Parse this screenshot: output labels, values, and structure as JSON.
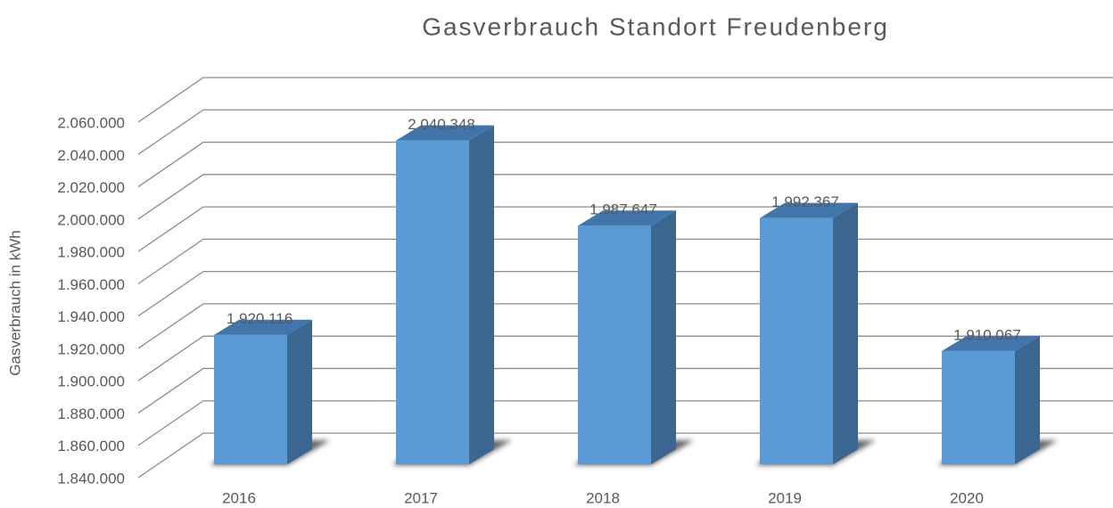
{
  "chart_data": {
    "type": "bar3d",
    "title": "Gasverbrauch Standort Freudenberg",
    "y_axis_label": "Gasverbrauch in kWh",
    "categories": [
      "2016",
      "2017",
      "2018",
      "2019",
      "2020"
    ],
    "values": [
      1920116,
      2040348,
      1987647,
      1992367,
      1910067
    ],
    "value_labels": [
      "1.920.116",
      "2.040.348",
      "1.987.647",
      "1.992.367",
      "1.910.067"
    ],
    "color": "#5b9bd5",
    "ylim": [
      1840000,
      2060000
    ],
    "yticks": [
      {
        "value": 1840000,
        "label": "1.840.000"
      },
      {
        "value": 1860000,
        "label": "1.860.000"
      },
      {
        "value": 1880000,
        "label": "1.880.000"
      },
      {
        "value": 1900000,
        "label": "1.900.000"
      },
      {
        "value": 1920000,
        "label": "1.920.000"
      },
      {
        "value": 1940000,
        "label": "1.940.000"
      },
      {
        "value": 1960000,
        "label": "1.960.000"
      },
      {
        "value": 1980000,
        "label": "1.980.000"
      },
      {
        "value": 2000000,
        "label": "2.000.000"
      },
      {
        "value": 2020000,
        "label": "2.020.000"
      },
      {
        "value": 2040000,
        "label": "2.040.000"
      },
      {
        "value": 2060000,
        "label": "2.060.000"
      }
    ],
    "grid": true
  }
}
